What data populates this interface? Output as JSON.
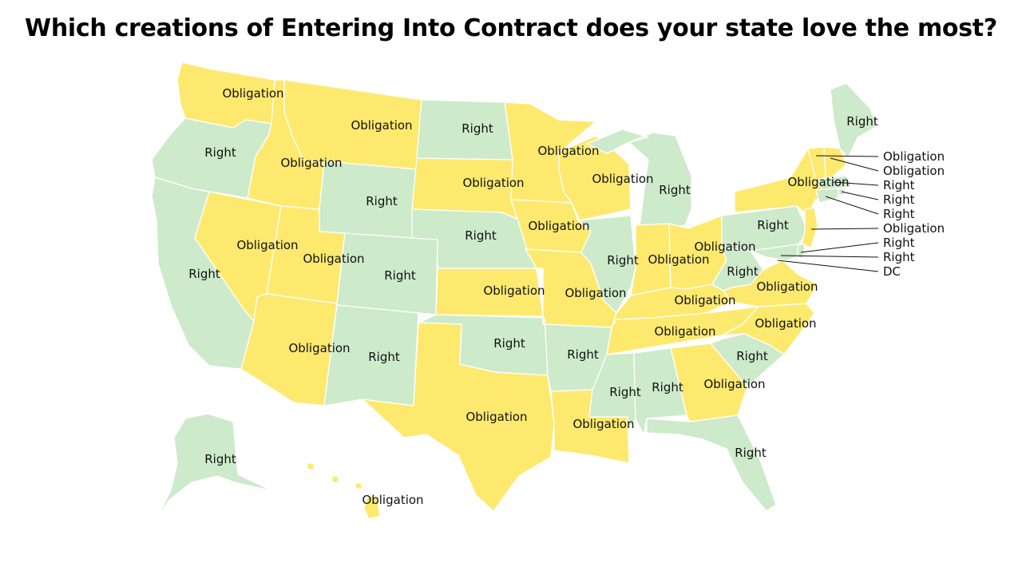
{
  "title": "Which creations of Entering Into Contract does your state love the most?",
  "colors": {
    "Right": "#cdeacb",
    "Obligation": "#fee96f"
  },
  "states": [
    {
      "code": "WA",
      "value": "Obligation"
    },
    {
      "code": "OR",
      "value": "Right"
    },
    {
      "code": "CA",
      "value": "Right"
    },
    {
      "code": "NV",
      "value": "Obligation"
    },
    {
      "code": "ID",
      "value": "Obligation"
    },
    {
      "code": "MT",
      "value": "Obligation"
    },
    {
      "code": "WY",
      "value": "Right"
    },
    {
      "code": "UT",
      "value": "Obligation"
    },
    {
      "code": "AZ",
      "value": "Obligation"
    },
    {
      "code": "CO",
      "value": "Right"
    },
    {
      "code": "NM",
      "value": "Right"
    },
    {
      "code": "ND",
      "value": "Right"
    },
    {
      "code": "SD",
      "value": "Obligation"
    },
    {
      "code": "NE",
      "value": "Right"
    },
    {
      "code": "KS",
      "value": "Obligation"
    },
    {
      "code": "OK",
      "value": "Right"
    },
    {
      "code": "TX",
      "value": "Obligation"
    },
    {
      "code": "MN",
      "value": "Obligation"
    },
    {
      "code": "IA",
      "value": "Obligation"
    },
    {
      "code": "MO",
      "value": "Obligation"
    },
    {
      "code": "AR",
      "value": "Right"
    },
    {
      "code": "LA",
      "value": "Obligation"
    },
    {
      "code": "WI",
      "value": "Obligation"
    },
    {
      "code": "IL",
      "value": "Right"
    },
    {
      "code": "MI",
      "value": "Right"
    },
    {
      "code": "IN",
      "value": "Obligation"
    },
    {
      "code": "OH",
      "value": "Obligation"
    },
    {
      "code": "KY",
      "value": "Obligation"
    },
    {
      "code": "TN",
      "value": "Obligation"
    },
    {
      "code": "MS",
      "value": "Right"
    },
    {
      "code": "AL",
      "value": "Right"
    },
    {
      "code": "GA",
      "value": "Obligation"
    },
    {
      "code": "FL",
      "value": "Right"
    },
    {
      "code": "SC",
      "value": "Right"
    },
    {
      "code": "NC",
      "value": "Obligation"
    },
    {
      "code": "VA",
      "value": "Obligation"
    },
    {
      "code": "WV",
      "value": "Right"
    },
    {
      "code": "PA",
      "value": "Right"
    },
    {
      "code": "NY",
      "value": "Obligation"
    },
    {
      "code": "ME",
      "value": "Right"
    },
    {
      "code": "AK",
      "value": "Right"
    },
    {
      "code": "HI",
      "value": "Obligation"
    }
  ],
  "callouts": [
    {
      "code": "VT",
      "value": "Obligation"
    },
    {
      "code": "NH",
      "value": "Obligation"
    },
    {
      "code": "MA",
      "value": "Right"
    },
    {
      "code": "RI",
      "value": "Right"
    },
    {
      "code": "CT",
      "value": "Right"
    },
    {
      "code": "NJ",
      "value": "Obligation"
    },
    {
      "code": "DE",
      "value": "Right"
    },
    {
      "code": "MD",
      "value": "Right"
    },
    {
      "code": "DC",
      "value": "DC"
    }
  ]
}
